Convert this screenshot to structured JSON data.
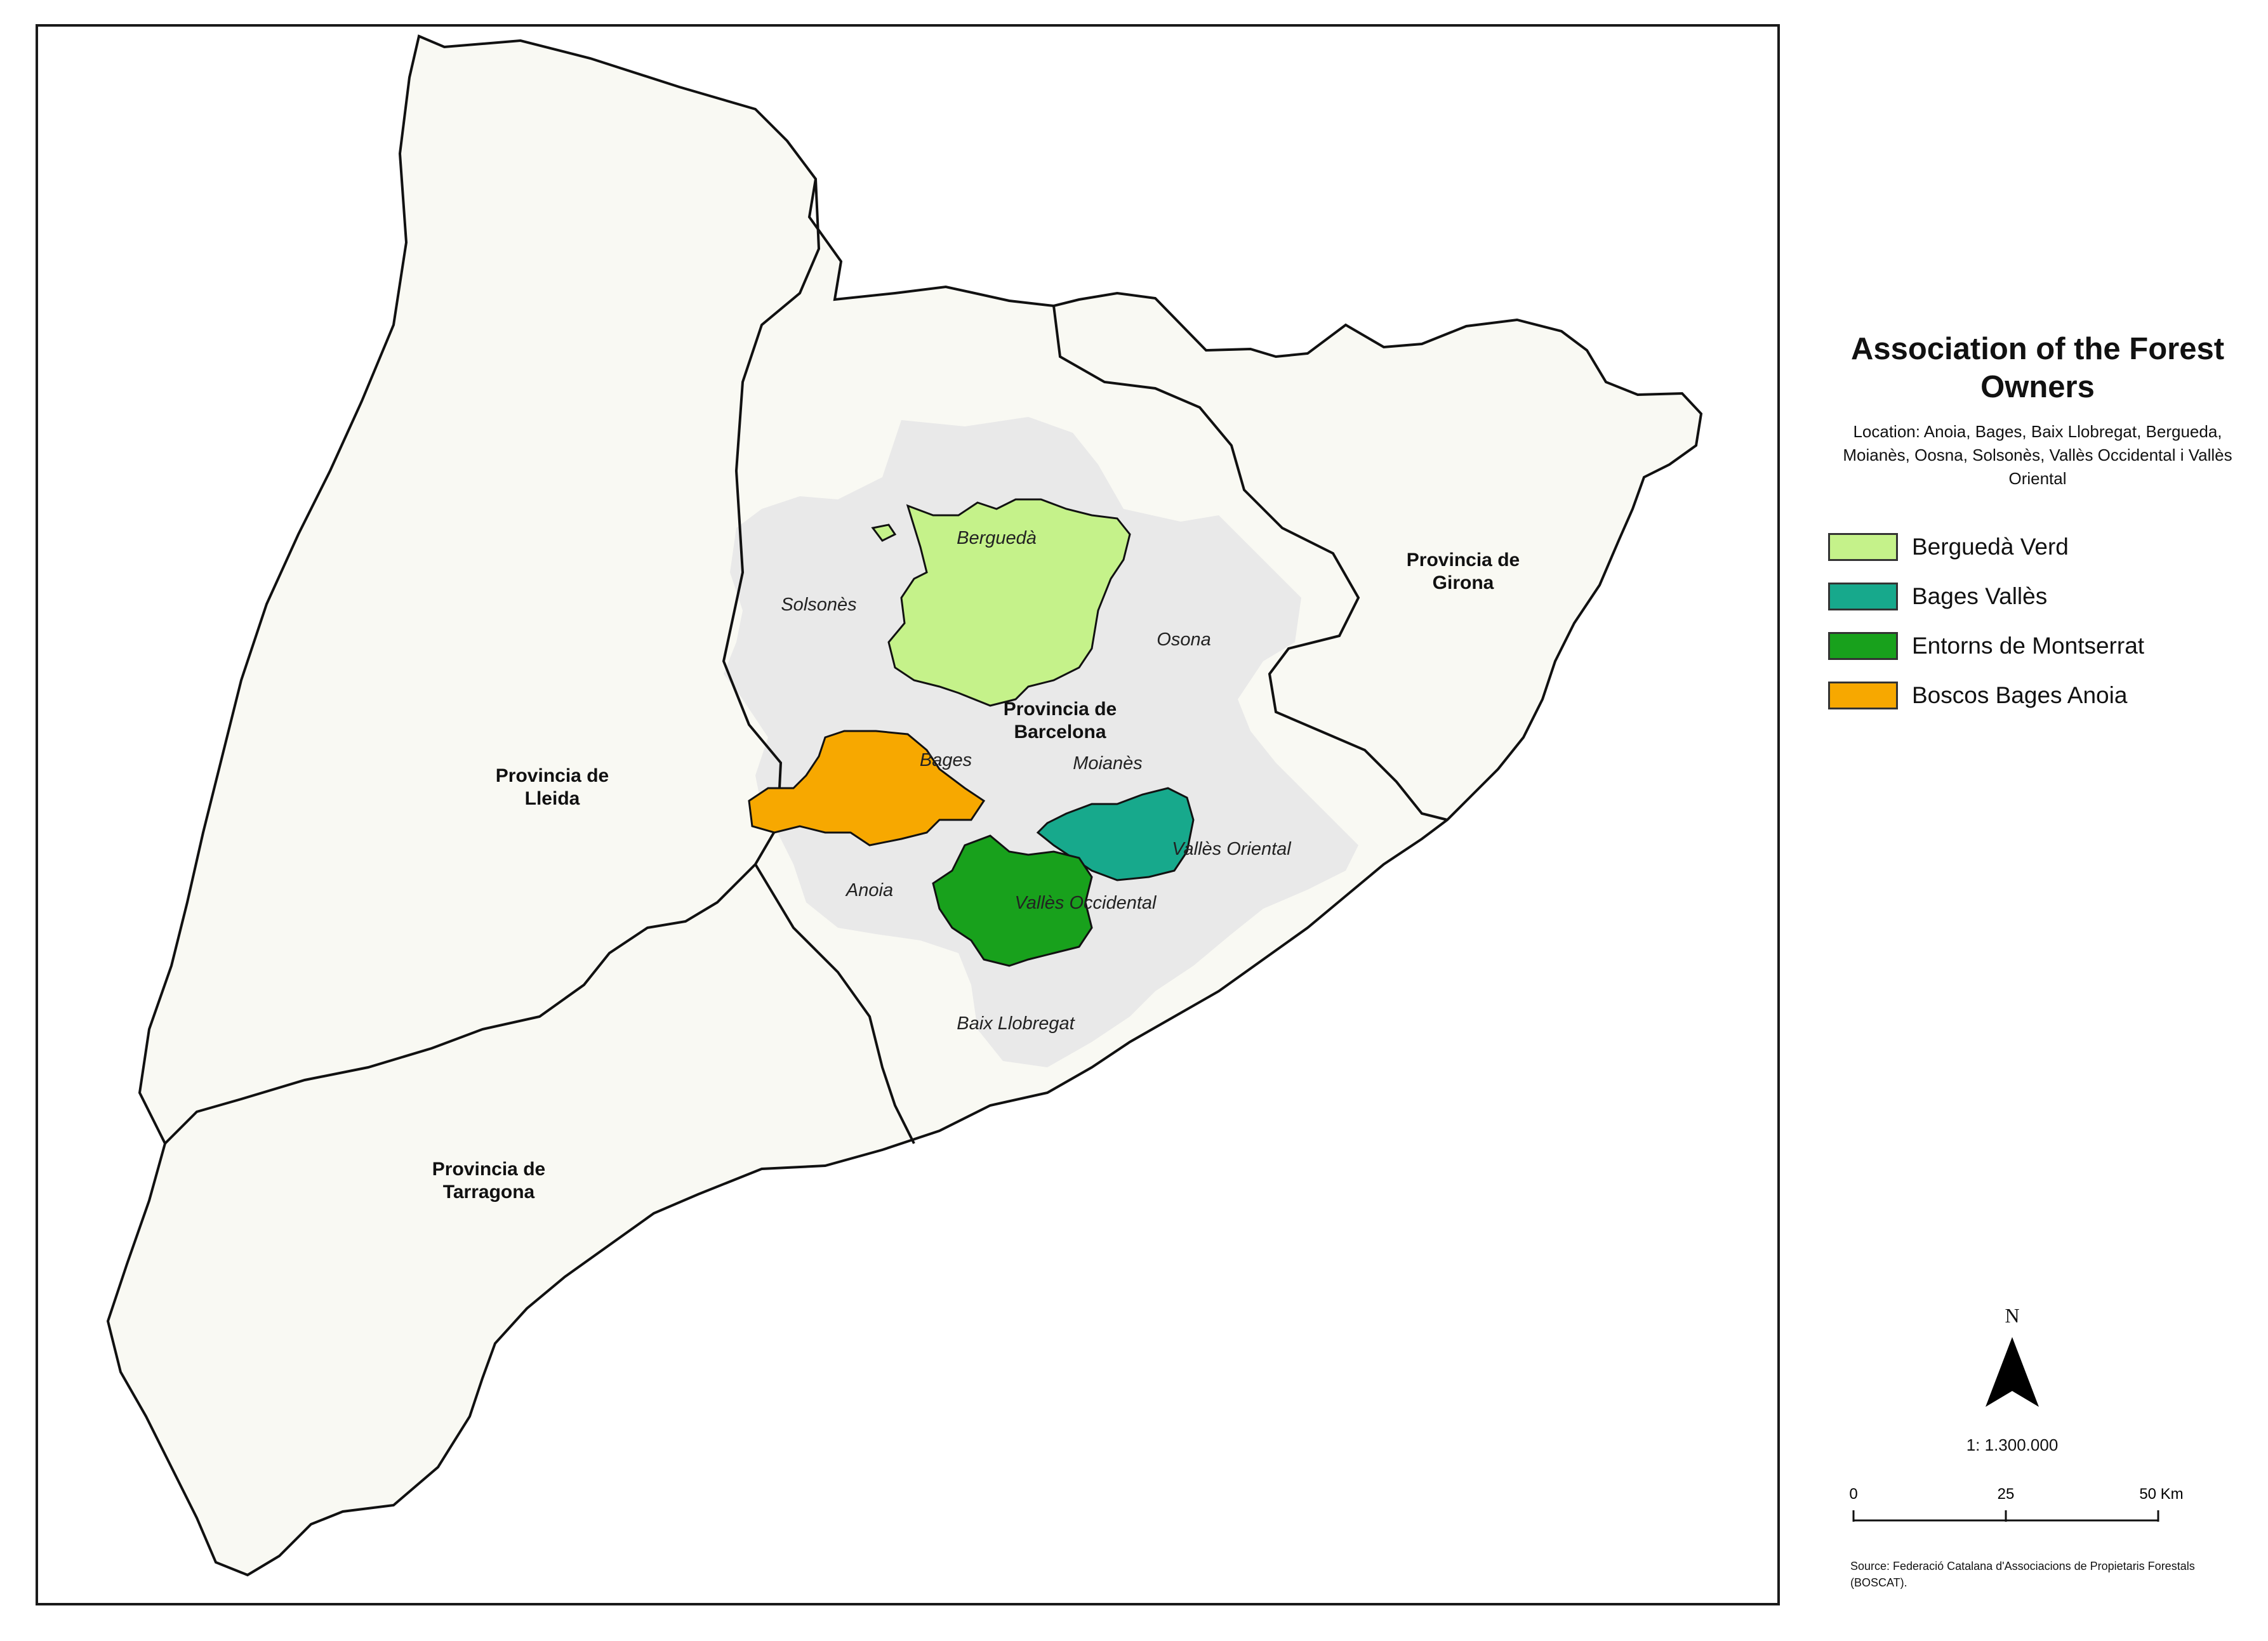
{
  "legend": {
    "title": "Association of the Forest Owners",
    "location": "Location: Anoia, Bages, Baix Llobregat, Bergueda, Moianès, Oosna, Solsonès, Vallès Occidental i Vallès Oriental",
    "items": [
      {
        "label": "Berguedà Verd",
        "color": "#c5f28a"
      },
      {
        "label": "Bages Vallès",
        "color": "#17a98c"
      },
      {
        "label": "Entorns de Montserrat",
        "color": "#18a11c"
      },
      {
        "label": "Boscos Bages Anoia",
        "color": "#f7a800"
      }
    ]
  },
  "provinces": {
    "lleida": "Provincia de Lleida",
    "girona": "Provincia de Girona",
    "barcelona": "Provincia de Barcelona",
    "tarragona": "Provincia de Tarragona"
  },
  "comarques": {
    "bergueda": "Berguedà",
    "solsones": "Solsonès",
    "osona": "Osona",
    "bages": "Bages",
    "moianes": "Moianès",
    "anoia": "Anoia",
    "valles_oriental": "Vallès Oriental",
    "valles_occidental": "Vallès Occidental",
    "baix_llobregat": "Baix Llobregat"
  },
  "north_arrow": {
    "letter": "N"
  },
  "scale": {
    "ratio": "1: 1.300.000",
    "ticks": [
      "0",
      "25",
      "50 Km"
    ]
  },
  "source": "Source: Federació Catalana d'Associacions de Propietaris Forestals (BOSCAT).",
  "colors": {
    "catalonia_fill": "#f9f9f3",
    "study_area_fill": "#e9e9e9",
    "boundary": "#111111"
  }
}
